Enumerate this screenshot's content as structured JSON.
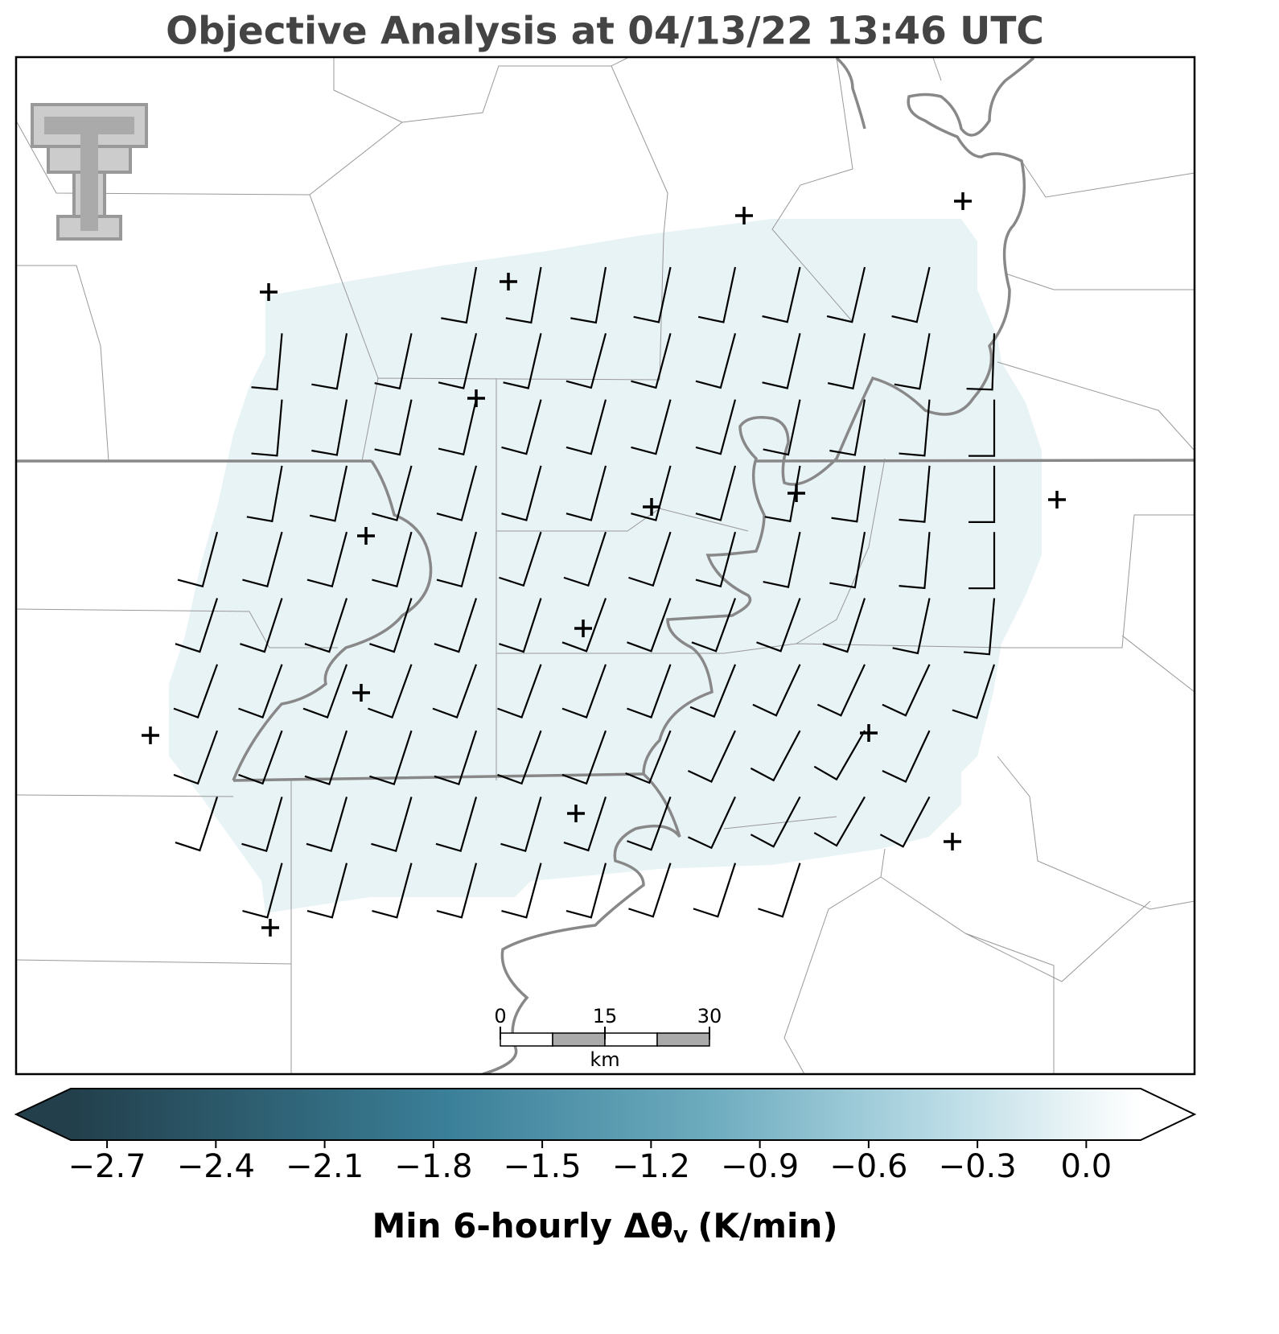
{
  "title": "Objective Analysis at 04/13/22 13:46 UTC",
  "colorbar": {
    "clim": [
      -2.8,
      0.15
    ],
    "ticks": [
      {
        "value": -2.7,
        "label": "−2.7"
      },
      {
        "value": -2.4,
        "label": "−2.4"
      },
      {
        "value": -2.1,
        "label": "−2.1"
      },
      {
        "value": -1.8,
        "label": "−1.8"
      },
      {
        "value": -1.5,
        "label": "−1.5"
      },
      {
        "value": -1.2,
        "label": "−1.2"
      },
      {
        "value": -0.9,
        "label": "−0.9"
      },
      {
        "value": -0.6,
        "label": "−0.6"
      },
      {
        "value": -0.3,
        "label": "−0.3"
      },
      {
        "value": 0,
        "label": "0.0"
      }
    ],
    "label": {
      "main": "Min 6-hourly Δθ",
      "sub": "v",
      "unit": "(K/min)"
    }
  },
  "scale_bar": {
    "ticks": [
      0,
      15,
      30
    ],
    "unit": "km"
  },
  "wind_barbs": {
    "speed_kt": 10,
    "direction": [
      [
        null,
        null,
        null,
        null,
        190,
        190,
        190,
        192,
        192,
        193,
        193,
        193,
        null
      ],
      [
        null,
        185,
        190,
        192,
        193,
        193,
        195,
        195,
        195,
        193,
        192,
        190,
        182
      ],
      [
        null,
        185,
        190,
        192,
        193,
        195,
        195,
        195,
        195,
        192,
        190,
        185,
        180
      ],
      [
        null,
        190,
        192,
        195,
        195,
        195,
        195,
        195,
        195,
        190,
        188,
        185,
        180
      ],
      [
        195,
        195,
        195,
        195,
        195,
        198,
        198,
        198,
        195,
        192,
        190,
        185,
        180
      ],
      [
        198,
        198,
        198,
        198,
        198,
        198,
        200,
        200,
        200,
        200,
        198,
        192,
        185
      ],
      [
        200,
        200,
        200,
        200,
        200,
        200,
        200,
        200,
        202,
        205,
        205,
        205,
        198
      ],
      [
        200,
        200,
        198,
        198,
        198,
        200,
        200,
        202,
        205,
        208,
        210,
        205,
        null
      ],
      [
        198,
        196,
        196,
        196,
        196,
        196,
        198,
        200,
        205,
        208,
        210,
        208,
        null
      ],
      [
        null,
        195,
        195,
        195,
        195,
        195,
        195,
        198,
        198,
        198,
        null,
        null,
        null
      ]
    ]
  }
}
